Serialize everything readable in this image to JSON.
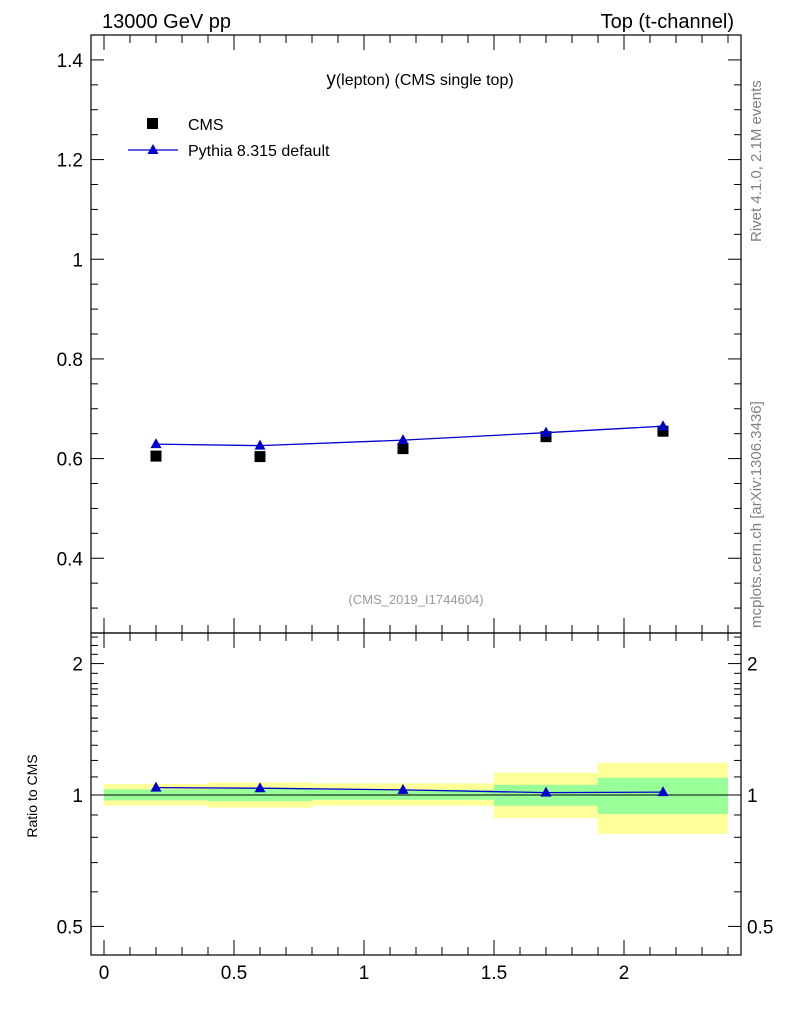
{
  "header": {
    "left": "13000 GeV pp",
    "right": "Top (t-channel)"
  },
  "side_labels": {
    "rivet": "Rivet 4.1.0,  2.1M events",
    "mcplots": "mcplots.cern.ch [arXiv:1306.3436]"
  },
  "chart_data": {
    "type": "scatter",
    "title_main": "y",
    "title_sub": "(lepton) (CMS single top)",
    "watermark": "(CMS_2019_I1744604)",
    "legend": {
      "placement": "top-left",
      "entries": [
        "CMS",
        "Pythia 8.315 default"
      ]
    },
    "main": {
      "ylim": [
        0.25,
        1.45
      ],
      "yticks": [
        0.4,
        0.6,
        0.8,
        1,
        1.2,
        1.4
      ],
      "ytick_labels": [
        "0.4",
        "0.6",
        "0.8",
        "1",
        "1.2",
        "1.4"
      ]
    },
    "ratio": {
      "ylabel": "Ratio to CMS",
      "ylim": [
        0.43,
        2.35
      ],
      "log_scale": true,
      "yticks": [
        0.5,
        1,
        2
      ],
      "ytick_labels": [
        "0.5",
        "1",
        "2"
      ]
    },
    "x": {
      "xlim": [
        -0.05,
        2.45
      ],
      "xticks": [
        0,
        0.5,
        1,
        1.5,
        2
      ],
      "xtick_labels": [
        "0",
        "0.5",
        "1",
        "1.5",
        "2"
      ]
    },
    "bins": [
      {
        "lo": 0.0,
        "hi": 0.4,
        "x": 0.2
      },
      {
        "lo": 0.4,
        "hi": 0.8,
        "x": 0.6
      },
      {
        "lo": 0.8,
        "hi": 1.5,
        "x": 1.15
      },
      {
        "lo": 1.5,
        "hi": 1.9,
        "x": 1.7
      },
      {
        "lo": 1.9,
        "hi": 2.4,
        "x": 2.15
      }
    ],
    "series": [
      {
        "name": "CMS",
        "marker": "square",
        "color": "#000000",
        "values": [
          0.605,
          0.604,
          0.62,
          0.644,
          0.655
        ]
      },
      {
        "name": "Pythia 8.315 default",
        "marker": "triangle",
        "color": "#0000cc",
        "values": [
          0.629,
          0.626,
          0.637,
          0.652,
          0.665
        ],
        "errors": [
          0.003,
          0.003,
          0.003,
          0.004,
          0.008
        ]
      }
    ],
    "ratio_bands": {
      "stat_color": "#99ff99",
      "total_color": "#ffff99",
      "stat": [
        [
          0.972,
          1.03
        ],
        [
          0.968,
          1.032
        ],
        [
          0.975,
          1.028
        ],
        [
          0.945,
          1.055
        ],
        [
          0.905,
          1.095
        ]
      ],
      "total": [
        [
          0.945,
          1.06
        ],
        [
          0.935,
          1.068
        ],
        [
          0.945,
          1.063
        ],
        [
          0.885,
          1.125
        ],
        [
          0.815,
          1.185
        ]
      ]
    }
  }
}
